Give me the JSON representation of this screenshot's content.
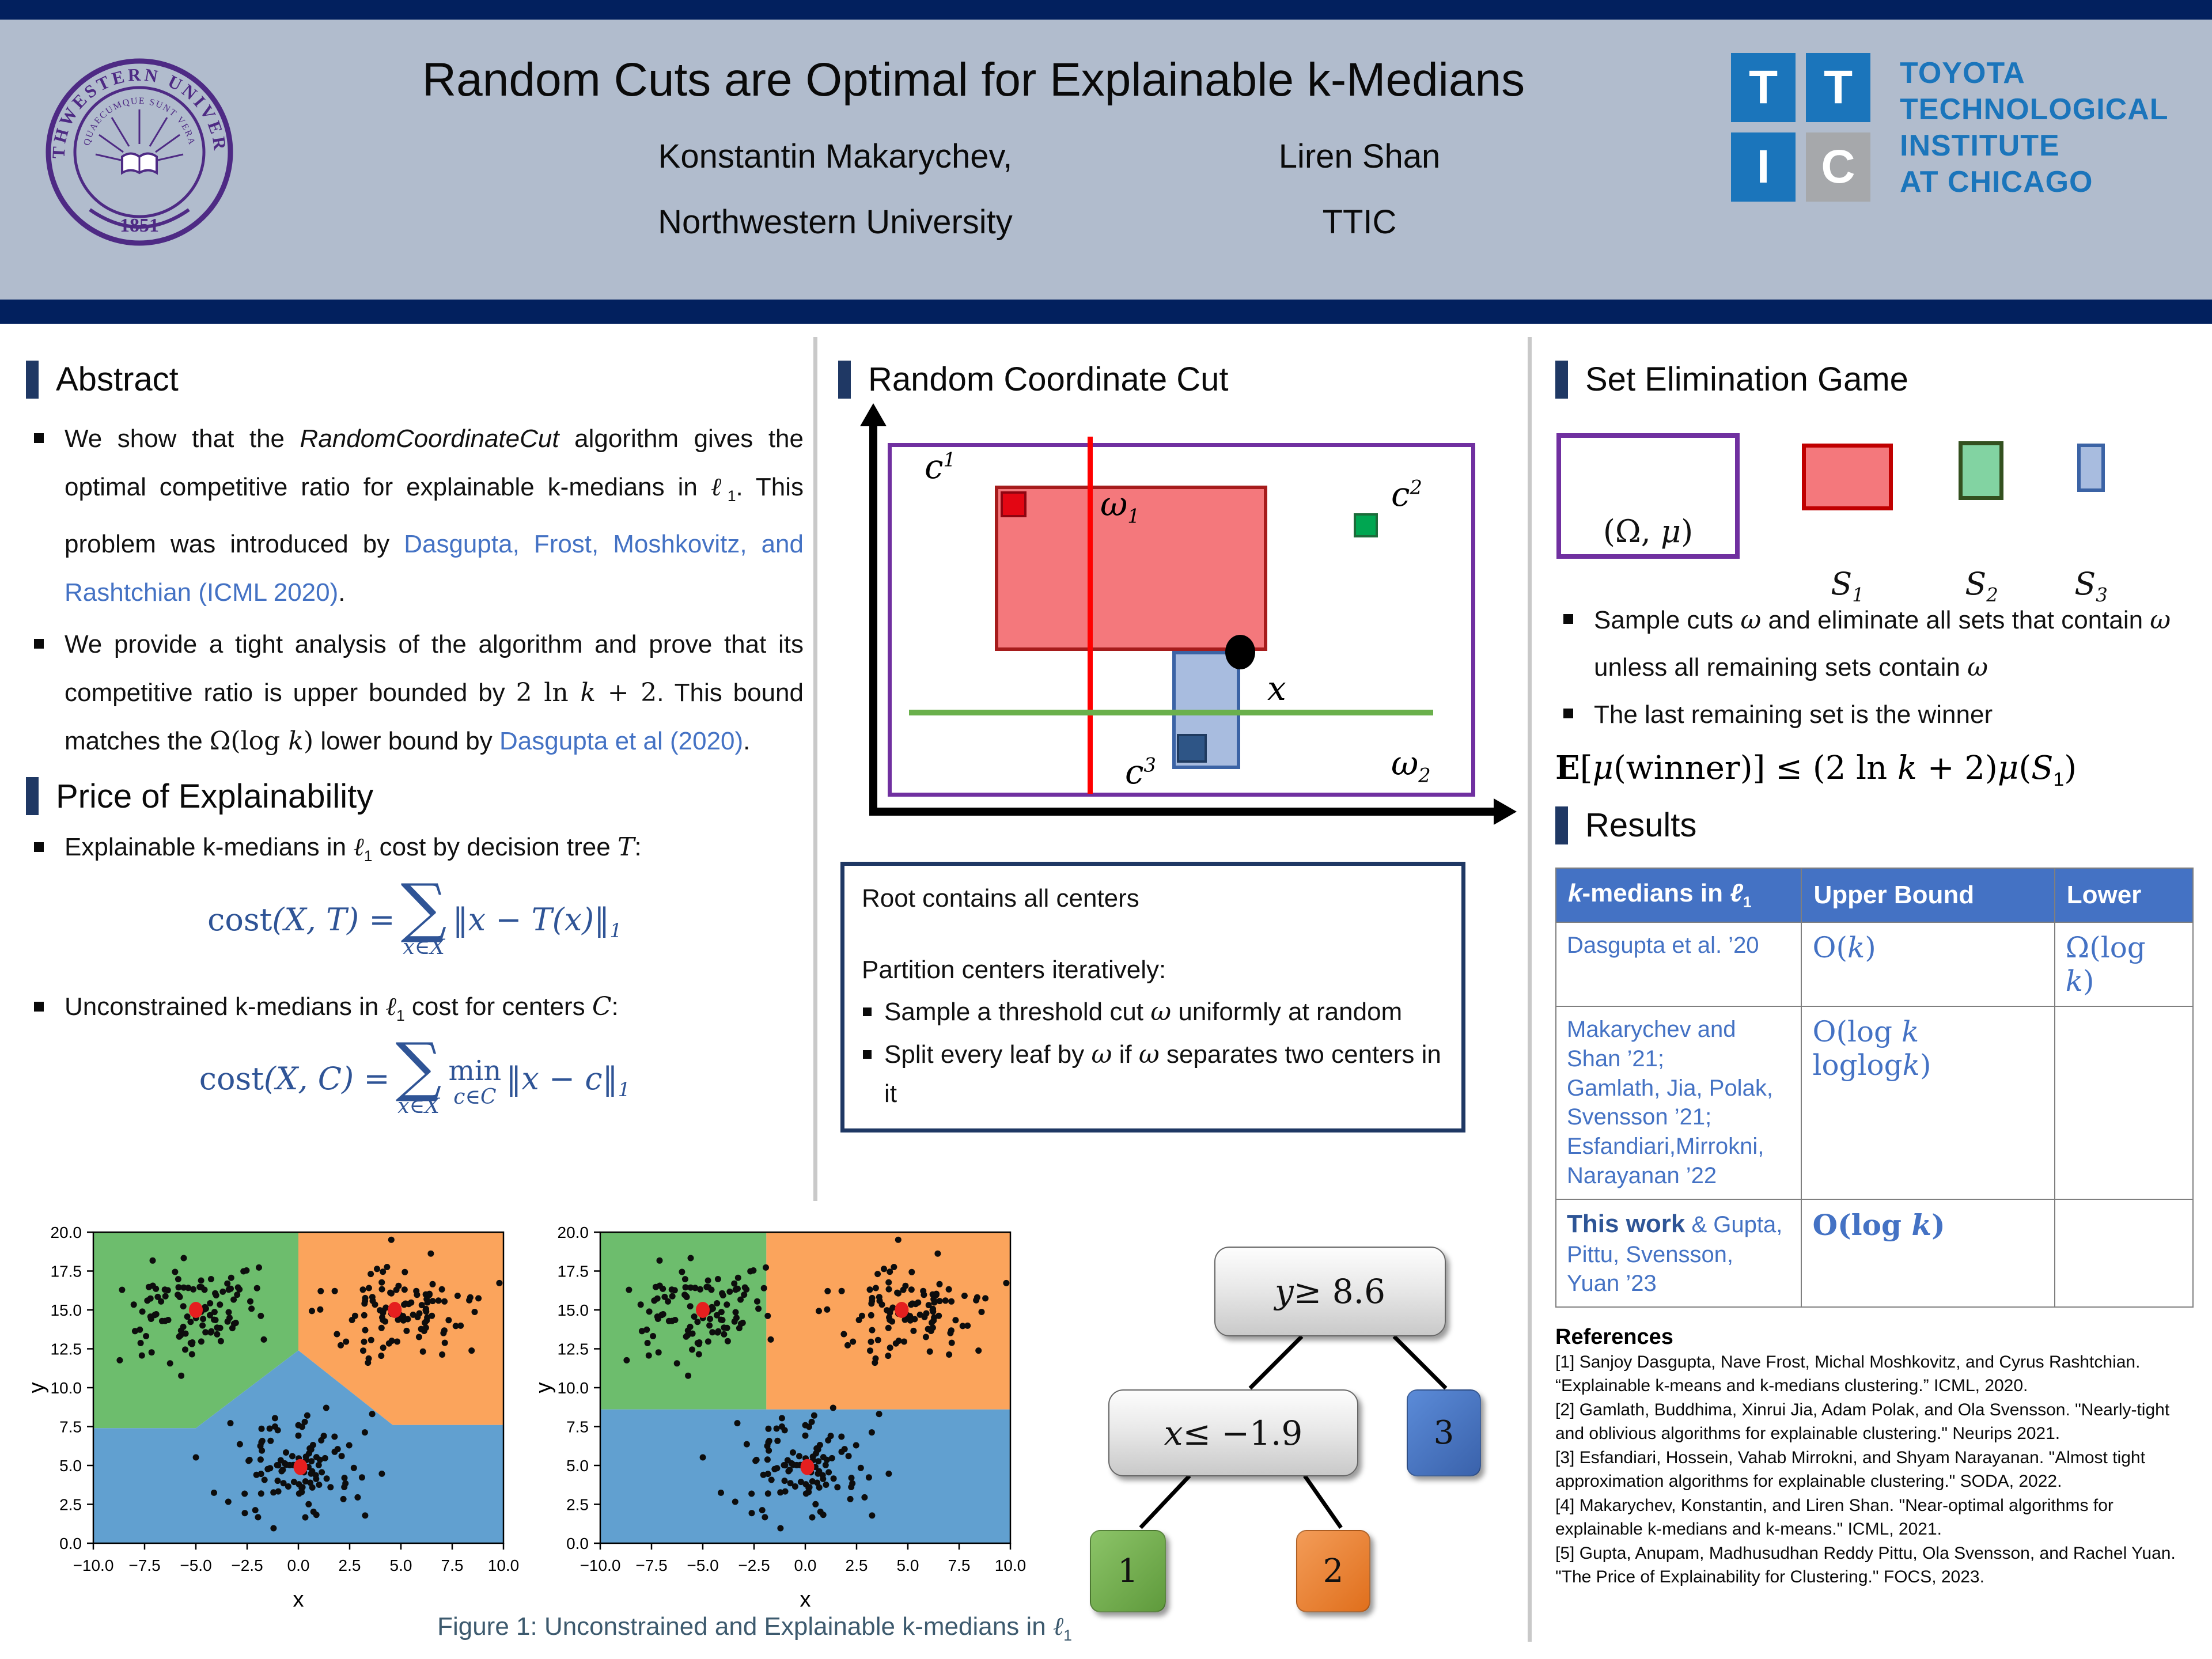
{
  "header": {
    "title": "Random Cuts are Optimal for Explainable k-Medians",
    "author1": "Konstantin Makarychev,",
    "author1_affiliation": "Northwestern University",
    "author2": "Liren Shan",
    "author2_affiliation": "TTIC",
    "seal": {
      "ring_text": "NORTHWESTERN UNIVERSITY",
      "inner_text": "QUAECUMQUE SUNT VERA",
      "year": "1851"
    },
    "ttic": {
      "tiles": [
        "T",
        "T",
        "I",
        "C"
      ],
      "lines": [
        "TOYOTA",
        "TECHNOLOGICAL",
        "INSTITUTE",
        "AT CHICAGO"
      ]
    }
  },
  "abstract": {
    "heading": "Abstract",
    "bullet1": [
      {
        "t": "We show that the "
      },
      {
        "t": "RandomCoordinateCut",
        "c": "it"
      },
      {
        "t": " algorithm gives the optimal competitive ratio  for  explainable k-medians in "
      },
      {
        "t": "ℓ",
        "c": "mit"
      },
      {
        "t": "1",
        "c": "sub"
      },
      {
        "t": ".   This problem was introduced  by "
      },
      {
        "t": "Dasgupta, Frost, Moshkovitz, and Rashtchian (ICML 2020)",
        "c": "link"
      },
      {
        "t": "."
      }
    ],
    "bullet2": [
      {
        "t": "We  provide  a  tight  analysis  of  the algorithm and prove that its competitive ratio  is  upper  bounded by "
      },
      {
        "t": "2 ln ",
        "c": "rm"
      },
      {
        "t": "k",
        "c": "mit"
      },
      {
        "t": " + 2",
        "c": "rm"
      },
      {
        "t": ".  This  bound  matches  the  "
      },
      {
        "t": "Ω(log ",
        "c": "rm"
      },
      {
        "t": "k",
        "c": "mit"
      },
      {
        "t": ")",
        "c": "rm"
      },
      {
        "t": " lower bound by "
      },
      {
        "t": "Dasgupta et al (2020)",
        "c": "link"
      },
      {
        "t": "."
      }
    ]
  },
  "price": {
    "heading": "Price of Explainability",
    "bullet1": [
      {
        "t": "Explainable k-medians in "
      },
      {
        "t": "ℓ",
        "c": "mit"
      },
      {
        "t": "1",
        "c": "sub"
      },
      {
        "t": " cost by decision tree "
      },
      {
        "t": "T",
        "c": "mit"
      },
      {
        "t": ":"
      }
    ],
    "formula1": {
      "lhs": [
        {
          "t": "cost",
          "c": "rm"
        },
        {
          "t": "(X, T)",
          "c": "mit"
        },
        {
          "t": " = ",
          "c": "rm"
        }
      ],
      "sigma": "∑",
      "under": "x∈X",
      "body": "‖x − T(x)‖",
      "sub": "1"
    },
    "bullet2": [
      {
        "t": "Unconstrained k-medians in "
      },
      {
        "t": "ℓ",
        "c": "mit"
      },
      {
        "t": "1",
        "c": "sub"
      },
      {
        "t": " cost  for  centers  "
      },
      {
        "t": "C",
        "c": "mit"
      },
      {
        "t": ":"
      }
    ],
    "formula2": {
      "lhs": [
        {
          "t": "cost",
          "c": "rm"
        },
        {
          "t": "(X, C)",
          "c": "mit"
        },
        {
          "t": " = ",
          "c": "rm"
        }
      ],
      "sigma": "∑",
      "under": "x∈X",
      "min": "min",
      "min_under": "c∈C",
      "body": "‖x − c‖",
      "sub": "1"
    }
  },
  "rcc": {
    "heading": "Random Coordinate Cut",
    "labels": {
      "c1": [
        {
          "t": "c",
          "c": "mit"
        },
        {
          "t": "1",
          "c": "sup"
        }
      ],
      "c2": [
        {
          "t": "c",
          "c": "mit"
        },
        {
          "t": "2",
          "c": "sup"
        }
      ],
      "c3": [
        {
          "t": "c",
          "c": "mit"
        },
        {
          "t": "3",
          "c": "sup"
        }
      ],
      "x": [
        {
          "t": "x",
          "c": "mit"
        }
      ],
      "w1": [
        {
          "t": "ω",
          "c": "mit"
        },
        {
          "t": "1",
          "c": "sub"
        }
      ],
      "w2": [
        {
          "t": "ω",
          "c": "mit"
        },
        {
          "t": "2",
          "c": "sub"
        }
      ]
    },
    "box": {
      "line1": "Root contains all centers",
      "line2": "Partition centers iteratively:",
      "bullet1": [
        {
          "t": "Sample a threshold cut "
        },
        {
          "t": "ω",
          "c": "mit"
        },
        {
          "t": " uniformly at random"
        }
      ],
      "bullet2": [
        {
          "t": "Split every leaf by "
        },
        {
          "t": "ω",
          "c": "mit"
        },
        {
          "t": " if "
        },
        {
          "t": "ω",
          "c": "mit"
        },
        {
          "t": " separates two centers in it"
        }
      ]
    }
  },
  "seg": {
    "heading": "Set Elimination Game",
    "omega_label": [
      {
        "t": "(Ω, ",
        "c": "rm"
      },
      {
        "t": "μ",
        "c": "mit"
      },
      {
        "t": ")",
        "c": "rm"
      }
    ],
    "set1_label": [
      {
        "t": "S"
      },
      {
        "t": "1",
        "c": "sub"
      }
    ],
    "set2_label": [
      {
        "t": "S"
      },
      {
        "t": "2",
        "c": "sub"
      }
    ],
    "set3_label": [
      {
        "t": "S"
      },
      {
        "t": "3",
        "c": "sub"
      }
    ],
    "bullet1": [
      {
        "t": "Sample cuts "
      },
      {
        "t": "ω",
        "c": "mit"
      },
      {
        "t": " and eliminate all sets that contain "
      },
      {
        "t": "ω",
        "c": "mit"
      },
      {
        "t": " unless all remaining sets contain "
      },
      {
        "t": "ω",
        "c": "mit"
      }
    ],
    "bullet2": [
      {
        "t": "The last remaining set is the winner"
      }
    ],
    "formula": [
      {
        "t": "E",
        "c": "bb"
      },
      {
        "t": "[",
        "c": "rm"
      },
      {
        "t": "μ",
        "c": "mit"
      },
      {
        "t": "(winner)] ≤ (2 ln ",
        "c": "rm"
      },
      {
        "t": "k",
        "c": "mit"
      },
      {
        "t": " + 2)",
        "c": "rm"
      },
      {
        "t": "μ",
        "c": "mit"
      },
      {
        "t": "(",
        "c": "rm"
      },
      {
        "t": "S",
        "c": "mit"
      },
      {
        "t": "1",
        "c": "sub"
      },
      {
        "t": ")",
        "c": "rm"
      }
    ]
  },
  "results": {
    "heading": "Results",
    "table": {
      "header1": [
        {
          "t": "k",
          "c": "it"
        },
        {
          "t": "-medians in "
        },
        {
          "t": "ℓ",
          "c": "it"
        },
        {
          "t": "1",
          "c": "sub"
        }
      ],
      "header2": "Upper Bound",
      "header3": "Lower",
      "rows": [
        {
          "method": [
            {
              "t": "Dasgupta et al. ’20"
            }
          ],
          "upper": [
            {
              "t": "O("
            },
            {
              "t": "k",
              "c": "mit"
            },
            {
              "t": ")"
            }
          ],
          "lower": [
            {
              "t": "Ω(log "
            },
            {
              "t": "k",
              "c": "mit"
            },
            {
              "t": ")"
            }
          ]
        },
        {
          "method": [
            {
              "t": "Makarychev and\nShan ’21;\nGamlath, Jia, Polak,\nSvensson ’21;\nEsfandiari,Mirrokni,\nNarayanan ’22"
            }
          ],
          "upper": [
            {
              "t": "O(log "
            },
            {
              "t": "k",
              "c": "mit"
            },
            {
              "t": " loglog"
            },
            {
              "t": "k",
              "c": "mit"
            },
            {
              "t": ")"
            }
          ],
          "lower": [
            {
              "t": ""
            }
          ]
        },
        {
          "method": [
            {
              "t": "This work",
              "c": "boldwork"
            },
            {
              "t": " & Gupta, Pittu, Svensson, Yuan ’23"
            }
          ],
          "upper": [
            {
              "t": "O(log ",
              "c": "t-bold"
            },
            {
              "t": "k",
              "c": "mit t-bold"
            },
            {
              "t": ")",
              "c": "t-bold"
            }
          ],
          "lower": [
            {
              "t": ""
            }
          ]
        }
      ]
    }
  },
  "references": {
    "heading": "References",
    "items": [
      "[1] Sanjoy Dasgupta, Nave Frost, Michal Moshkovitz, and Cyrus Rashtchian. “Explainable k-means and k-medians clustering.” ICML, 2020.",
      "[2] Gamlath, Buddhima, Xinrui Jia, Adam Polak, and Ola Svensson. \"Nearly-tight and oblivious algorithms for explainable clustering.\" Neurips 2021.",
      "[3] Esfandiari, Hossein, Vahab Mirrokni, and Shyam Narayanan. \"Almost tight approximation algorithms for explainable clustering.\" SODA, 2022.",
      "[4] Makarychev, Konstantin, and Liren Shan. \"Near-optimal algorithms for explainable k-medians and k-means.\" ICML, 2021.",
      "[5] Gupta, Anupam, Madhusudhan Reddy Pittu, Ola Svensson, and Rachel Yuan. \"The Price of Explainability for Clustering.\" FOCS, 2023."
    ]
  },
  "figure": {
    "caption": [
      {
        "t": "Figure 1: Unconstrained and Explainable k-medians in "
      },
      {
        "t": "ℓ",
        "c": "mit"
      },
      {
        "t": "1",
        "c": "sub"
      }
    ],
    "tree": {
      "root": [
        {
          "t": "y",
          "c": "mit"
        },
        {
          "t": " ≥ 8.6",
          "c": "rm"
        }
      ],
      "internal": [
        {
          "t": "x",
          "c": "mit"
        },
        {
          "t": " ≤ −1.9",
          "c": "rm"
        }
      ],
      "leaf1": "1",
      "leaf2": "2",
      "leaf3": "3"
    }
  },
  "chart_data": [
    {
      "type": "scatter",
      "title": "Unconstrained k-medians (Voronoi-style regions)",
      "xlabel": "x",
      "ylabel": "y",
      "xlim": [
        -10,
        10
      ],
      "ylim": [
        0,
        20
      ],
      "xticks": [
        -10,
        -7.5,
        -5,
        -2.5,
        0,
        2.5,
        5,
        7.5,
        10
      ],
      "yticks": [
        0,
        2.5,
        5,
        7.5,
        10,
        12.5,
        15,
        17.5,
        20
      ],
      "grid": false,
      "regions": [
        {
          "name": "green",
          "polygon": [
            [
              -10,
              20
            ],
            [
              0,
              20
            ],
            [
              0,
              12.4
            ],
            [
              -5,
              7.4
            ],
            [
              -10,
              7.4
            ]
          ]
        },
        {
          "name": "orange",
          "polygon": [
            [
              0,
              20
            ],
            [
              10,
              20
            ],
            [
              10,
              7.6
            ],
            [
              4.6,
              7.6
            ],
            [
              0,
              12.4
            ]
          ]
        },
        {
          "name": "blue",
          "polygon": [
            [
              -10,
              7.4
            ],
            [
              -5,
              7.4
            ],
            [
              0,
              12.4
            ],
            [
              4.6,
              7.6
            ],
            [
              10,
              7.6
            ],
            [
              10,
              0
            ],
            [
              -10,
              0
            ]
          ]
        }
      ],
      "clusters": [
        {
          "center": [
            -5,
            15
          ],
          "n": 105,
          "sx": 1.75,
          "sy": 1.45,
          "seed": 101
        },
        {
          "center": [
            4.8,
            15
          ],
          "n": 105,
          "sx": 1.85,
          "sy": 1.5,
          "seed": 202
        },
        {
          "center": [
            0.3,
            4.9
          ],
          "n": 105,
          "sx": 1.6,
          "sy": 1.65,
          "seed": 303
        }
      ],
      "centers": [
        [
          -5,
          15
        ],
        [
          4.7,
          15
        ],
        [
          0.1,
          4.9
        ]
      ]
    },
    {
      "type": "scatter",
      "title": "Explainable k-medians (threshold-tree regions)",
      "xlabel": "x",
      "ylabel": "y",
      "xlim": [
        -10,
        10
      ],
      "ylim": [
        0,
        20
      ],
      "xticks": [
        -10,
        -7.5,
        -5,
        -2.5,
        0,
        2.5,
        5,
        7.5,
        10
      ],
      "yticks": [
        0,
        2.5,
        5,
        7.5,
        10,
        12.5,
        15,
        17.5,
        20
      ],
      "grid": false,
      "thresholds": {
        "x": -1.9,
        "y": 8.6
      },
      "regions": [
        {
          "name": "green",
          "polygon": [
            [
              -10,
              20
            ],
            [
              -1.9,
              20
            ],
            [
              -1.9,
              8.6
            ],
            [
              -10,
              8.6
            ]
          ]
        },
        {
          "name": "orange",
          "polygon": [
            [
              -1.9,
              20
            ],
            [
              10,
              20
            ],
            [
              10,
              8.6
            ],
            [
              -1.9,
              8.6
            ]
          ]
        },
        {
          "name": "blue",
          "polygon": [
            [
              -10,
              8.6
            ],
            [
              10,
              8.6
            ],
            [
              10,
              0
            ],
            [
              -10,
              0
            ]
          ]
        }
      ],
      "clusters": [
        {
          "center": [
            -5,
            15
          ],
          "n": 105,
          "sx": 1.75,
          "sy": 1.45,
          "seed": 101
        },
        {
          "center": [
            4.8,
            15
          ],
          "n": 105,
          "sx": 1.85,
          "sy": 1.5,
          "seed": 202
        },
        {
          "center": [
            0.3,
            4.9
          ],
          "n": 105,
          "sx": 1.6,
          "sy": 1.65,
          "seed": 303
        }
      ],
      "centers": [
        [
          -5,
          15
        ],
        [
          4.7,
          15
        ],
        [
          0.1,
          4.9
        ]
      ]
    }
  ],
  "colors": {
    "navy": "#02205e",
    "header_band": "#b1bccd",
    "section_bar": "#1F3864",
    "link_blue": "#4472C4",
    "formula_blue": "#2F5496",
    "purple": "#7030A0",
    "nu_purple": "#4E2A84",
    "ttic_blue": "#1b75bb",
    "regions": {
      "green": "#6dbd6d",
      "orange": "#fba45c",
      "blue": "#61a0d0"
    },
    "scatter_point": "#0d0d0d",
    "scatter_center": "#e51f1f",
    "rect_red_fill": "#F4787C",
    "rect_red_border": "#A61C1C",
    "rect_green_fill": "#82D3A2",
    "rect_green_border": "#33501f",
    "rect_blue_fill": "#A8BCDF",
    "rect_blue_border": "#3B63A5",
    "cut1_red": "#FF0000",
    "cut2_green": "#6ab04c"
  }
}
